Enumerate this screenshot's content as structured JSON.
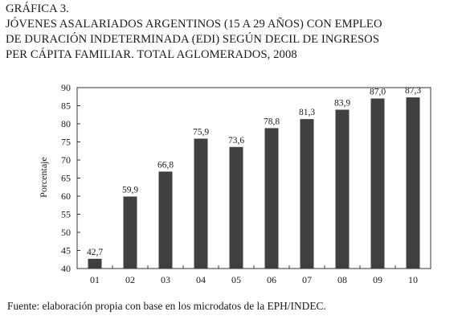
{
  "title": {
    "line1": "GRÁFICA 3.",
    "line2": "JÓVENES ASALARIADOS ARGENTINOS (15 A 29 AÑOS) CON EMPLEO",
    "line3": "DE DURACIÓN INDETERMINADA (EDI) SEGÚN DECIL DE INGRESOS",
    "line4": "PER CÁPITA FAMILIAR. TOTAL AGLOMERADOS, 2008"
  },
  "source": "Fuente: elaboración propia con base en los microdatos de la EPH/INDEC.",
  "chart_data": {
    "type": "bar",
    "title": "JÓVENES ASALARIADOS ARGENTINOS (15 A 29 AÑOS) CON EMPLEO DE DURACIÓN INDETERMINADA (EDI) SEGÚN DECIL DE INGRESOS PER CÁPITA FAMILIAR. TOTAL AGLOMERADOS, 2008",
    "xlabel": "",
    "ylabel": "Porcentaje",
    "categories": [
      "01",
      "02",
      "03",
      "04",
      "05",
      "06",
      "07",
      "08",
      "09",
      "10"
    ],
    "values": [
      42.7,
      59.9,
      66.8,
      75.9,
      73.6,
      78.8,
      81.3,
      83.9,
      87.0,
      87.3
    ],
    "value_labels": [
      "42,7",
      "59,9",
      "66,8",
      "75,9",
      "73,6",
      "78,8",
      "81,3",
      "83,9",
      "87,0",
      "87,3"
    ],
    "ylim": [
      40,
      90
    ],
    "yticks": [
      40,
      45,
      50,
      55,
      60,
      65,
      70,
      75,
      80,
      85,
      90
    ],
    "grid": false,
    "legend": "none",
    "bar_color": "#404040"
  }
}
